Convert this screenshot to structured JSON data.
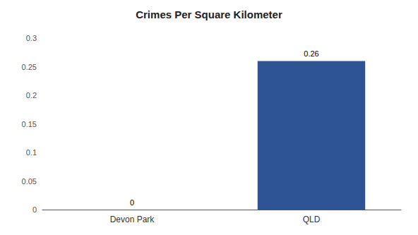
{
  "chart_data": {
    "type": "bar",
    "title": "Crimes Per Square Kilometer",
    "categories": [
      "Devon Park",
      "QLD"
    ],
    "values": [
      0,
      0.26
    ],
    "color": "#2e5496",
    "ylim": [
      0,
      0.3
    ],
    "yticks": [
      0,
      0.05,
      0.1,
      0.15,
      0.2,
      0.25,
      0.3
    ],
    "grid": false,
    "data_labels": true
  }
}
